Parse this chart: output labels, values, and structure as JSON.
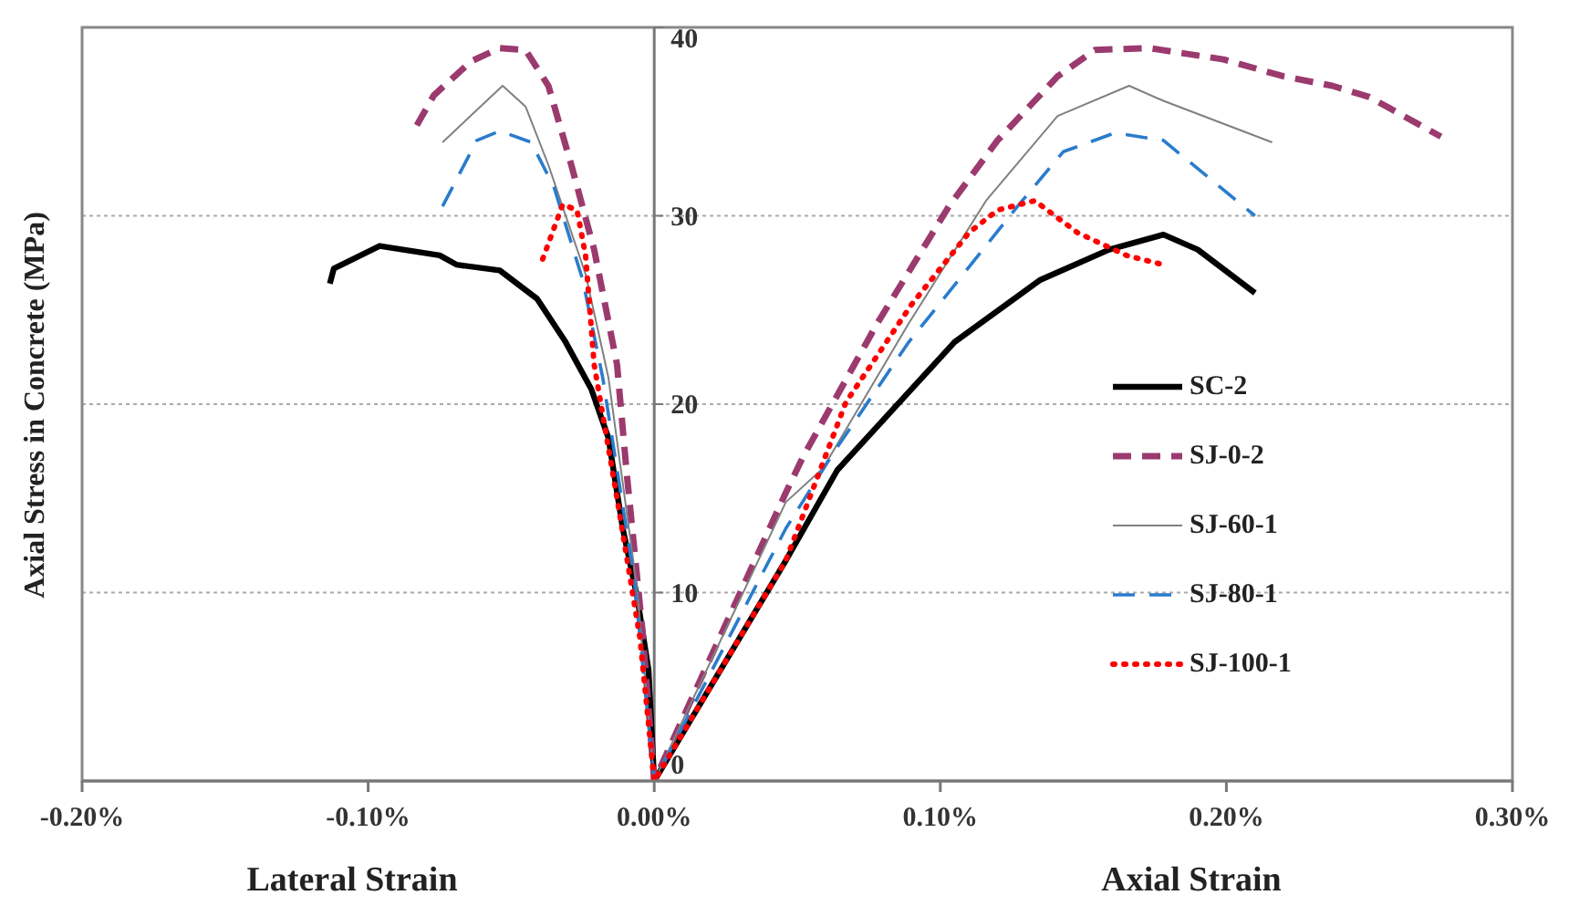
{
  "chart_data": {
    "type": "line",
    "xlabel": "Lateral Strain",
    "ylabel": "Axial Stress in Concrete  (MPa)",
    "annotations": [
      "Axial Strain"
    ],
    "xlim": [
      -0.2,
      0.3
    ],
    "xticks": [
      {
        "value": -0.2,
        "label": "-0.20%"
      },
      {
        "value": -0.1,
        "label": "-0.10%"
      },
      {
        "value": 0,
        "label": "0.00%"
      },
      {
        "value": 0.1,
        "label": "0.10%"
      },
      {
        "value": 0.2,
        "label": "0.20%"
      },
      {
        "value": 0.3,
        "label": "0.30%"
      }
    ],
    "ylim": [
      0,
      40
    ],
    "yticks": [
      0,
      10,
      20,
      30,
      40
    ],
    "grid": "y",
    "legend": "right",
    "marker": "none",
    "series": [
      {
        "name": "SC-2",
        "color": "#000000",
        "line_style": "solid",
        "x": [
          -0.1134,
          -0.112,
          -0.096,
          -0.075,
          -0.069,
          -0.054,
          -0.041,
          -0.031,
          -0.022,
          -0.016,
          -0.011,
          -0.006,
          -0.002,
          0,
          0.046,
          0.064,
          0.105,
          0.135,
          0.159,
          0.178,
          0.19,
          0.21
        ],
        "values": [
          26.4,
          27.2,
          28.4,
          27.9,
          27.4,
          27.1,
          25.6,
          23.3,
          20.8,
          18.2,
          13.4,
          9.8,
          5.9,
          0,
          11.7,
          16.5,
          23.3,
          26.6,
          28.2,
          29.0,
          28.2,
          25.9
        ]
      },
      {
        "name": "SJ-0-2",
        "color": "#9b3a6e",
        "line_style": "dashed",
        "x": [
          -0.083,
          -0.077,
          -0.064,
          -0.054,
          -0.045,
          -0.037,
          -0.029,
          -0.021,
          -0.013,
          -0.0096,
          -0.004,
          0,
          0.046,
          0.052,
          0.078,
          0.103,
          0.12,
          0.141,
          0.154,
          0.173,
          0.199,
          0.22,
          0.237,
          0.25,
          0.275
        ],
        "values": [
          34.8,
          36.4,
          38.2,
          38.9,
          38.8,
          36.9,
          32.7,
          28.2,
          22.1,
          16.3,
          7.8,
          0,
          15.3,
          17.2,
          24.3,
          30.5,
          34.0,
          37.4,
          38.8,
          38.9,
          38.3,
          37.4,
          36.9,
          36.3,
          34.2
        ]
      },
      {
        "name": "SJ-60-1",
        "color": "#808080",
        "line_style": "solid",
        "x": [
          -0.074,
          -0.053,
          -0.045,
          -0.037,
          -0.024,
          -0.016,
          -0.006,
          0,
          0.046,
          0.059,
          0.089,
          0.116,
          0.141,
          0.166,
          0.178,
          0.216
        ],
        "values": [
          33.9,
          36.9,
          35.8,
          32.7,
          26.9,
          21.4,
          10.2,
          0,
          14.8,
          16.6,
          24.3,
          30.8,
          35.3,
          36.9,
          36.1,
          33.9
        ]
      },
      {
        "name": "SJ-80-1",
        "color": "#2a7ccc",
        "line_style": "dashed",
        "x": [
          -0.074,
          -0.062,
          -0.054,
          -0.043,
          -0.035,
          -0.025,
          -0.018,
          -0.007,
          0,
          0.046,
          0.063,
          0.089,
          0.127,
          0.143,
          0.161,
          0.178,
          0.194,
          0.21
        ],
        "values": [
          30.5,
          34.0,
          34.5,
          33.9,
          31.5,
          26.6,
          21.4,
          10.7,
          0,
          13.4,
          17.5,
          23.3,
          30.5,
          33.4,
          34.4,
          34.0,
          32.0,
          30.0
        ]
      },
      {
        "name": "SJ-100-1",
        "color": "#ff0000",
        "line_style": "dotted",
        "x": [
          -0.039,
          -0.032,
          -0.027,
          -0.024,
          -0.021,
          -0.013,
          -0.005,
          0,
          0.046,
          0.067,
          0.09,
          0.11,
          0.12,
          0.133,
          0.148,
          0.165,
          0.178
        ],
        "values": [
          27.7,
          30.6,
          30.3,
          27.9,
          22.1,
          15.0,
          7.6,
          0,
          11.7,
          20.1,
          25.3,
          29.1,
          30.3,
          30.8,
          29.1,
          27.9,
          27.4
        ]
      }
    ]
  }
}
